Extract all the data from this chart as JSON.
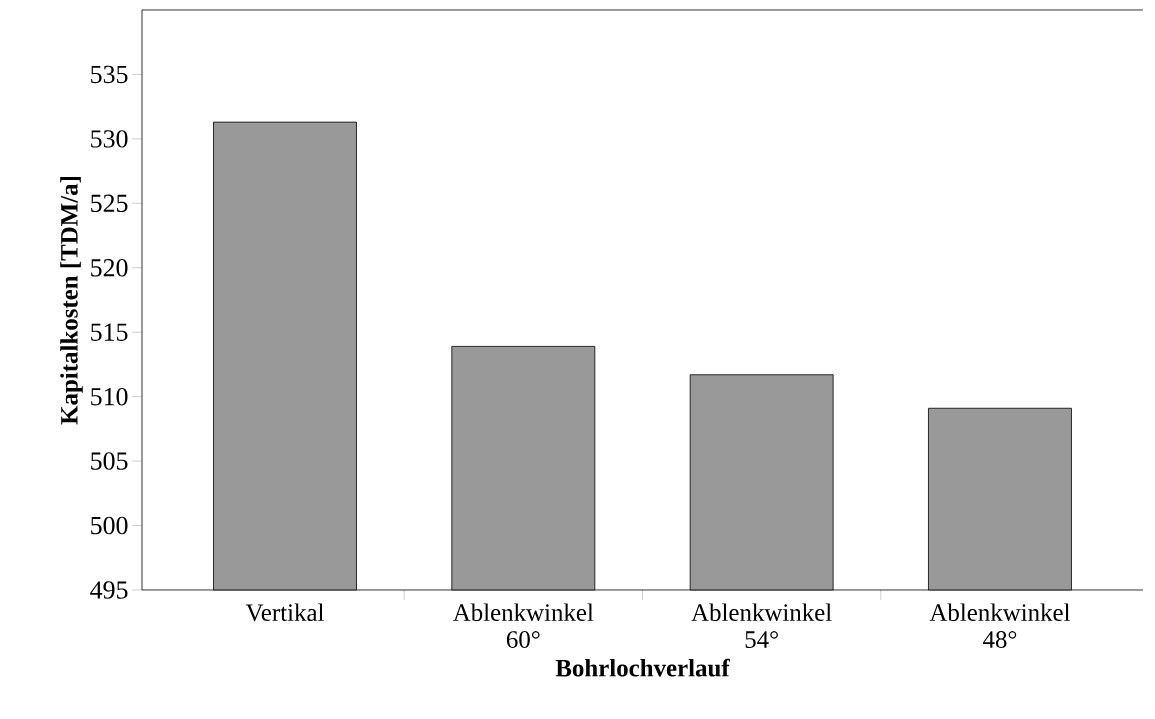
{
  "chart_data": {
    "type": "bar",
    "xlabel": "Bohrlochverlauf",
    "ylabel": "Kapitalkosten [TDM/a]",
    "categories": [
      "Vertikal",
      "Ablenkwinkel 60°",
      "Ablenkwinkel 54°",
      "Ablenkwinkel 48°"
    ],
    "values": [
      531.3,
      513.9,
      511.7,
      509.1
    ],
    "color": "#999999",
    "ylim": [
      495,
      540
    ],
    "yticks": [
      495,
      500,
      505,
      510,
      515,
      520,
      525,
      530,
      535
    ],
    "grid": false
  }
}
